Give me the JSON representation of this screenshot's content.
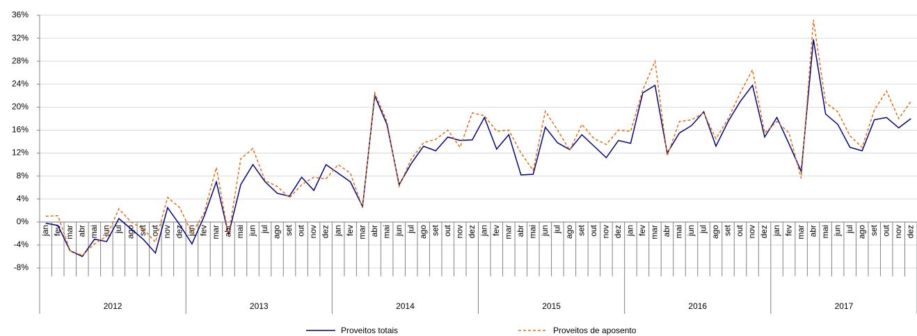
{
  "chart_data": {
    "type": "line",
    "categories": [
      "jan",
      "fev",
      "mar",
      "abr",
      "mai",
      "jun",
      "jul",
      "ago",
      "set",
      "out",
      "nov",
      "dez",
      "jan",
      "fev",
      "mar",
      "abr",
      "mai",
      "jun",
      "jul",
      "ago",
      "set",
      "out",
      "nov",
      "dez",
      "jan",
      "fev",
      "mar",
      "abr",
      "mai",
      "jun",
      "jul",
      "ago",
      "set",
      "out",
      "nov",
      "dez",
      "jan",
      "fev",
      "mar",
      "abr",
      "mai",
      "jun",
      "jul",
      "ago",
      "set",
      "out",
      "nov",
      "dez",
      "jan",
      "fev",
      "mar",
      "abr",
      "mai",
      "jun",
      "jul",
      "ago",
      "set",
      "out",
      "nov",
      "dez",
      "jan",
      "fev",
      "mar",
      "abr",
      "mai",
      "jun",
      "jul",
      "ago",
      "set",
      "out",
      "nov",
      "dez"
    ],
    "years": [
      "2012",
      "2013",
      "2014",
      "2015",
      "2016",
      "2017"
    ],
    "series": [
      {
        "name": "Proveitos totais",
        "color": "#000080",
        "dash": false,
        "values": [
          -0.2,
          -0.6,
          -5,
          -6,
          -3,
          -3.4,
          0.6,
          -1.2,
          -3,
          -5.4,
          2.5,
          -0.5,
          -3.8,
          1,
          7,
          -2.2,
          6.5,
          10,
          7,
          5,
          4.5,
          7.8,
          5.5,
          10,
          8.5,
          7,
          2.7,
          22,
          17,
          6.5,
          10.2,
          13.2,
          12.4,
          14.8,
          14.2,
          14.3,
          18.2,
          12.7,
          15.2,
          8.2,
          8.3,
          16.5,
          13.8,
          12.6,
          15.2,
          13.2,
          11.2,
          14.2,
          13.7,
          22.5,
          23.8,
          12,
          15.5,
          16.8,
          19.2,
          13.2,
          17.5,
          21,
          23.8,
          14.8,
          18.2,
          13.6,
          8.8,
          31.8,
          18.8,
          17,
          13,
          12.4,
          17.8,
          18.2,
          16.4,
          18
        ]
      },
      {
        "name": "Proveitos de aposento",
        "color": "#e46c0a",
        "dash": true,
        "values": [
          1,
          1.1,
          -5,
          -5.8,
          -3.8,
          -2.5,
          2.3,
          0,
          -1.2,
          -3.5,
          4.3,
          2.5,
          -2,
          1.6,
          9.5,
          -2.4,
          11,
          12.8,
          7.2,
          6.2,
          4.2,
          6.5,
          7.8,
          7.5,
          10,
          8.5,
          2.5,
          22.5,
          17.5,
          6.2,
          11,
          13.8,
          14.4,
          16,
          13,
          19,
          18.5,
          15.8,
          16,
          12,
          9,
          19.3,
          16,
          12.5,
          17,
          14.5,
          13.5,
          16,
          15.8,
          23,
          28,
          11.5,
          17.5,
          17.8,
          19,
          14.5,
          18,
          22.5,
          26.5,
          15.5,
          17.5,
          15.5,
          7.6,
          35.2,
          20.8,
          19.2,
          15,
          13,
          19.5,
          22.8,
          18,
          21
        ]
      }
    ],
    "ylim": [
      -8,
      36
    ],
    "yticks": [
      {
        "value": -8,
        "label": "-8%"
      },
      {
        "value": -4,
        "label": "-4%"
      },
      {
        "value": 0,
        "label": "0%"
      },
      {
        "value": 4,
        "label": "4%"
      },
      {
        "value": 8,
        "label": "8%"
      },
      {
        "value": 12,
        "label": "12%"
      },
      {
        "value": 16,
        "label": "16%"
      },
      {
        "value": 20,
        "label": "20%"
      },
      {
        "value": 24,
        "label": "24%"
      },
      {
        "value": 28,
        "label": "28%"
      },
      {
        "value": 32,
        "label": "32%"
      },
      {
        "value": 36,
        "label": "36%"
      }
    ],
    "grid": true,
    "legend": "bottom"
  }
}
